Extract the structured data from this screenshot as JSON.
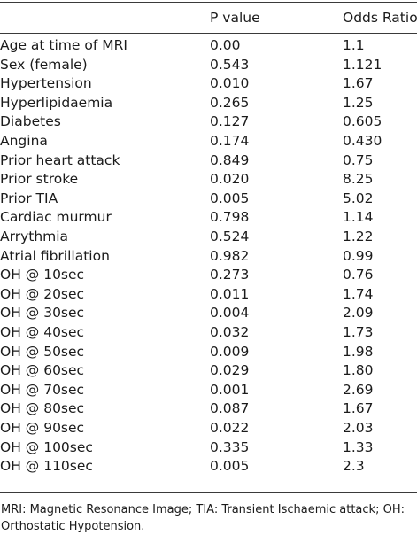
{
  "table": {
    "headers": [
      "",
      "P value",
      "Odds Ratio"
    ],
    "rows": [
      [
        "Age at time of MRI",
        "0.00",
        "1.1"
      ],
      [
        "Sex (female)",
        "0.543",
        "1.121"
      ],
      [
        "Hypertension",
        "0.010",
        "1.67"
      ],
      [
        "Hyperlipidaemia",
        "0.265",
        "1.25"
      ],
      [
        "Diabetes",
        "0.127",
        "0.605"
      ],
      [
        "Angina",
        "0.174",
        "0.430"
      ],
      [
        "Prior heart attack",
        "0.849",
        "0.75"
      ],
      [
        "Prior stroke",
        "0.020",
        "8.25"
      ],
      [
        "Prior TIA",
        "0.005",
        "5.02"
      ],
      [
        "Cardiac murmur",
        "0.798",
        "1.14"
      ],
      [
        "Arrythmia",
        "0.524",
        "1.22"
      ],
      [
        "Atrial fibrillation",
        "0.982",
        "0.99"
      ],
      [
        "OH @ 10sec",
        "0.273",
        "0.76"
      ],
      [
        "OH @ 20sec",
        "0.011",
        "1.74"
      ],
      [
        "OH @ 30sec",
        "0.004",
        "2.09"
      ],
      [
        "OH @ 40sec",
        "0.032",
        "1.73"
      ],
      [
        "OH @ 50sec",
        "0.009",
        "1.98"
      ],
      [
        "OH @ 60sec",
        "0.029",
        "1.80"
      ],
      [
        "OH @ 70sec",
        "0.001",
        "2.69"
      ],
      [
        "OH @ 80sec",
        "0.087",
        "1.67"
      ],
      [
        "OH @ 90sec",
        "0.022",
        "2.03"
      ],
      [
        "OH @ 100sec",
        "0.335",
        "1.33"
      ],
      [
        "OH @ 110sec",
        "0.005",
        "2.3"
      ]
    ]
  },
  "footnote": "MRI: Magnetic Resonance Image; TIA: Transient Ischaemic attack; OH: Orthostatic Hypotension."
}
